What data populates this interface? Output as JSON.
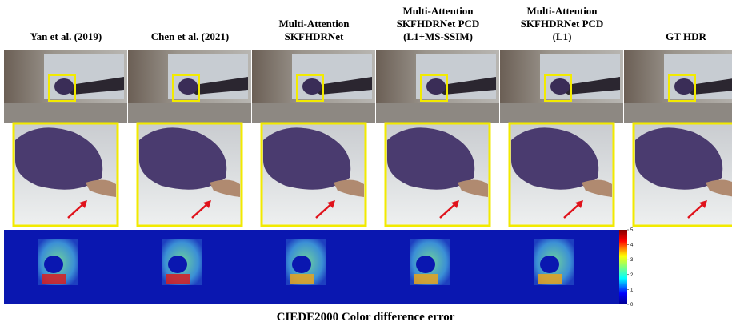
{
  "figure": {
    "columns": [
      {
        "header": [
          "Yan et al. (2019)"
        ]
      },
      {
        "header": [
          "Chen et al. (2021)"
        ]
      },
      {
        "header": [
          "Multi-Attention",
          "SKFHDRNet"
        ]
      },
      {
        "header": [
          "Multi-Attention",
          "SKFHDRNet PCD",
          "(L1+MS-SSIM)"
        ]
      },
      {
        "header": [
          "Multi-Attention",
          "SKFHDRNet PCD",
          "(L1)"
        ]
      },
      {
        "header": [
          "GT HDR"
        ]
      }
    ],
    "colorbar": {
      "ticks": [
        0,
        1,
        2,
        3,
        4,
        5
      ],
      "lim": [
        0,
        5
      ]
    },
    "caption": "CIEDE2000 Color difference error"
  }
}
